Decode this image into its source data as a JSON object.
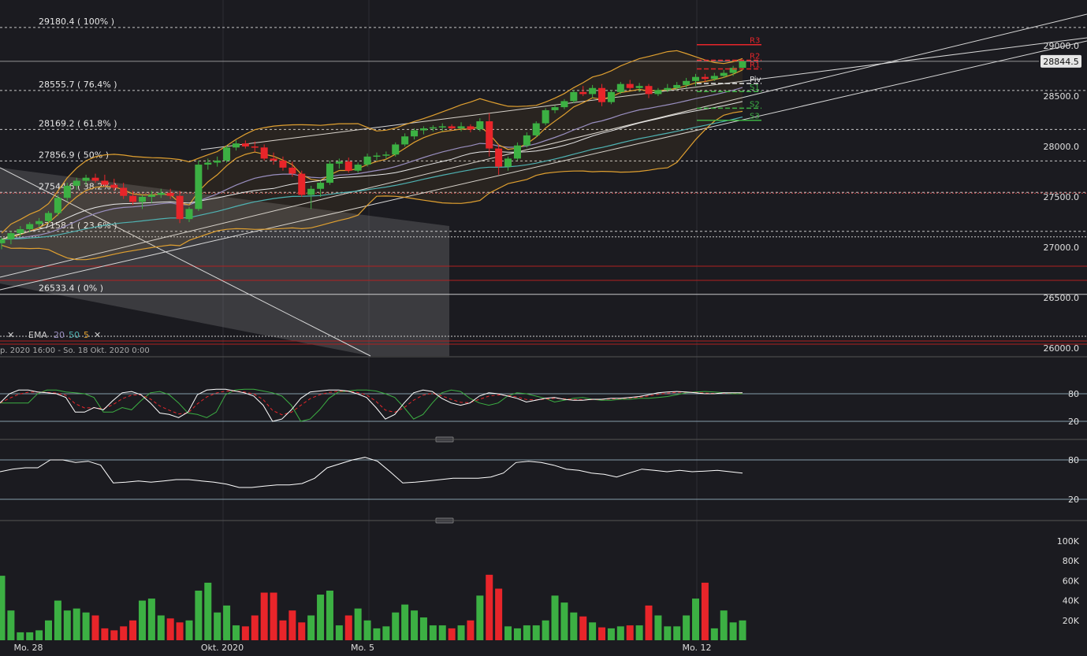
{
  "colors": {
    "background": "#1b1b20",
    "bull": "#3cb043",
    "bear": "#e8252a",
    "bollinger": "#e0a030",
    "ema20": "#9a8fc0",
    "ema50": "#4fb3b3",
    "ema5": "#e0a030",
    "fib": "#e6e6e6",
    "grid": "#2c2c33",
    "stoch_k": "#ffffff",
    "stoch_d": "#e8252a",
    "stoch_slow": "#3cb043",
    "rsi": "#ffffff",
    "price_badge_bg": "#e6e6e6"
  },
  "price_axis": {
    "ticks": [
      "29000.0",
      "28500.0",
      "28000.0",
      "27500.0",
      "27000.0",
      "26500.0",
      "26000.0"
    ],
    "current_price": "28844.5"
  },
  "fib_levels": [
    {
      "label": "29180.4 ( 100% )",
      "value": 29180.4,
      "style": "dashed"
    },
    {
      "label": "28555.7 ( 76.4% )",
      "value": 28555.7,
      "style": "dashed"
    },
    {
      "label": "28169.2 ( 61.8% )",
      "value": 28169.2,
      "style": "dashed"
    },
    {
      "label": "27856.9 ( 50% )",
      "value": 27856.9,
      "style": "dashed"
    },
    {
      "label": "27544.6 ( 38.2% )",
      "value": 27544.6,
      "style": "dashed"
    },
    {
      "label": "27158.1 ( 23.6% )",
      "value": 27158.1,
      "style": "dashed"
    },
    {
      "label": "26533.4 ( 0% )",
      "value": 26533.4,
      "style": "solid"
    }
  ],
  "pivots": [
    {
      "label": "R3",
      "value": 29010,
      "color": "#e8252a"
    },
    {
      "label": "R2",
      "value": 28855,
      "color": "#e8252a"
    },
    {
      "label": "R1",
      "value": 28770,
      "color": "#e8252a"
    },
    {
      "label": "Piv",
      "value": 28625,
      "color": "#e6e6e6"
    },
    {
      "label": "S1",
      "value": 28545,
      "color": "#3cb043"
    },
    {
      "label": "S2",
      "value": 28380,
      "color": "#3cb043"
    },
    {
      "label": "S3",
      "value": 28260,
      "color": "#3cb043"
    }
  ],
  "indicator_legend": {
    "close_symbol": "✕",
    "name": "EMA",
    "p1": "20",
    "p2": "50",
    "p3": "5",
    "remove_symbol": "✕"
  },
  "range_label": "p. 2020 16:00 - So. 18 Okt. 2020 0:00",
  "oscillator_ticks": {
    "upper": "80",
    "lower": "20"
  },
  "volume_ticks": [
    "100K",
    "80K",
    "60K",
    "40K",
    "20K"
  ],
  "time_labels": [
    "Mo. 28",
    "Okt. 2020",
    "Mo. 5",
    "Mo. 12"
  ],
  "chart_data": {
    "type": "candlestick",
    "candles": [
      [
        27040,
        27100,
        26980,
        27080
      ],
      [
        27080,
        27160,
        27030,
        27140
      ],
      [
        27140,
        27210,
        27100,
        27180
      ],
      [
        27180,
        27250,
        27150,
        27230
      ],
      [
        27230,
        27290,
        27200,
        27260
      ],
      [
        27260,
        27360,
        27240,
        27340
      ],
      [
        27340,
        27520,
        27310,
        27490
      ],
      [
        27490,
        27640,
        27460,
        27610
      ],
      [
        27610,
        27690,
        27570,
        27660
      ],
      [
        27660,
        27720,
        27620,
        27690
      ],
      [
        27690,
        27730,
        27640,
        27660
      ],
      [
        27660,
        27720,
        27600,
        27620
      ],
      [
        27620,
        27680,
        27560,
        27590
      ],
      [
        27590,
        27640,
        27480,
        27510
      ],
      [
        27510,
        27560,
        27420,
        27450
      ],
      [
        27450,
        27520,
        27380,
        27500
      ],
      [
        27500,
        27560,
        27440,
        27520
      ],
      [
        27520,
        27580,
        27490,
        27540
      ],
      [
        27540,
        27580,
        27480,
        27510
      ],
      [
        27510,
        27560,
        27240,
        27280
      ],
      [
        27280,
        27400,
        27250,
        27380
      ],
      [
        27380,
        27860,
        27360,
        27820
      ],
      [
        27820,
        27880,
        27770,
        27840
      ],
      [
        27840,
        27900,
        27800,
        27860
      ],
      [
        27860,
        28010,
        27840,
        27990
      ],
      [
        27990,
        28060,
        27960,
        28030
      ],
      [
        28030,
        28060,
        27980,
        28000
      ],
      [
        28000,
        28050,
        27950,
        27990
      ],
      [
        27990,
        28020,
        27860,
        27880
      ],
      [
        27880,
        27940,
        27820,
        27860
      ],
      [
        27860,
        27900,
        27760,
        27790
      ],
      [
        27790,
        27850,
        27700,
        27730
      ],
      [
        27730,
        27760,
        27500,
        27520
      ],
      [
        27520,
        27610,
        27380,
        27580
      ],
      [
        27580,
        27660,
        27500,
        27640
      ],
      [
        27640,
        27860,
        27620,
        27830
      ],
      [
        27830,
        27880,
        27780,
        27850
      ],
      [
        27850,
        27890,
        27740,
        27760
      ],
      [
        27760,
        27840,
        27740,
        27820
      ],
      [
        27820,
        27930,
        27800,
        27900
      ],
      [
        27900,
        27940,
        27860,
        27910
      ],
      [
        27910,
        27950,
        27880,
        27920
      ],
      [
        27920,
        28040,
        27900,
        28020
      ],
      [
        28020,
        28130,
        28000,
        28100
      ],
      [
        28100,
        28180,
        28070,
        28160
      ],
      [
        28160,
        28200,
        28120,
        28180
      ],
      [
        28180,
        28210,
        28150,
        28190
      ],
      [
        28190,
        28230,
        28150,
        28200
      ],
      [
        28200,
        28220,
        28160,
        28180
      ],
      [
        28180,
        28240,
        28150,
        28200
      ],
      [
        28200,
        28220,
        28140,
        28170
      ],
      [
        28170,
        28280,
        28150,
        28250
      ],
      [
        28250,
        28330,
        27900,
        27980
      ],
      [
        27980,
        28020,
        27720,
        27800
      ],
      [
        27800,
        27900,
        27760,
        27880
      ],
      [
        27880,
        28040,
        27860,
        28010
      ],
      [
        28010,
        28140,
        27990,
        28110
      ],
      [
        28110,
        28250,
        28090,
        28230
      ],
      [
        28230,
        28380,
        28210,
        28360
      ],
      [
        28360,
        28410,
        28330,
        28390
      ],
      [
        28390,
        28470,
        28370,
        28450
      ],
      [
        28450,
        28560,
        28430,
        28540
      ],
      [
        28540,
        28600,
        28500,
        28520
      ],
      [
        28520,
        28610,
        28480,
        28580
      ],
      [
        28580,
        28620,
        28400,
        28440
      ],
      [
        28440,
        28560,
        28420,
        28540
      ],
      [
        28540,
        28640,
        28520,
        28620
      ],
      [
        28620,
        28660,
        28560,
        28580
      ],
      [
        28580,
        28630,
        28540,
        28600
      ],
      [
        28600,
        28620,
        28480,
        28520
      ],
      [
        28520,
        28580,
        28500,
        28560
      ],
      [
        28560,
        28620,
        28540,
        28580
      ],
      [
        28580,
        28640,
        28560,
        28610
      ],
      [
        28610,
        28680,
        28580,
        28650
      ],
      [
        28650,
        28720,
        28600,
        28690
      ],
      [
        28690,
        28720,
        28640,
        28670
      ],
      [
        28670,
        28730,
        28650,
        28700
      ],
      [
        28700,
        28760,
        28680,
        28730
      ],
      [
        28730,
        28800,
        28700,
        28780
      ],
      [
        28780,
        28860,
        28760,
        28845
      ]
    ],
    "volume": [
      65,
      30,
      8,
      8,
      10,
      20,
      40,
      30,
      32,
      28,
      25,
      12,
      10,
      14,
      20,
      40,
      42,
      25,
      22,
      18,
      20,
      50,
      58,
      28,
      35,
      15,
      14,
      25,
      48,
      48,
      20,
      30,
      18,
      25,
      46,
      50,
      15,
      25,
      32,
      20,
      12,
      14,
      28,
      36,
      30,
      23,
      15,
      15,
      12,
      15,
      20,
      45,
      66,
      52,
      14,
      12,
      15,
      15,
      20,
      45,
      38,
      28,
      24,
      18,
      13,
      12,
      14,
      15,
      15,
      35,
      25,
      14,
      14,
      25,
      42,
      58,
      12,
      30,
      18,
      20
    ]
  }
}
